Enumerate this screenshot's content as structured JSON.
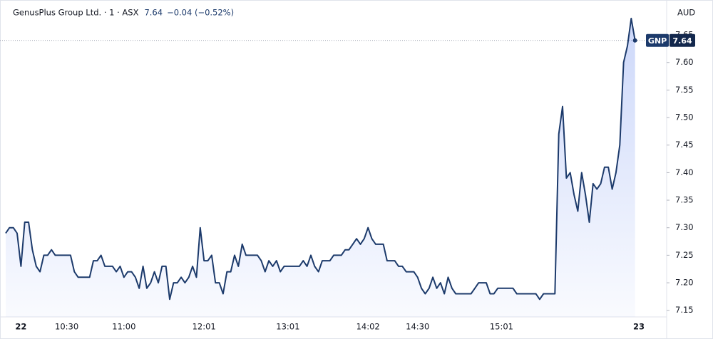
{
  "chart_data": {
    "type": "line",
    "title": "GenusPlus Group Ltd. · 1 · ASX",
    "last_price": 7.64,
    "change": "−0.04 (−0.52%)",
    "symbol": "GNP",
    "currency": "AUD",
    "color": "#1c3a6b",
    "categories": [
      null,
      null,
      null,
      null,
      "22",
      null,
      null,
      null,
      null,
      null,
      null,
      null,
      null,
      null,
      null,
      null,
      "10:30",
      null,
      null,
      null,
      null,
      null,
      null,
      null,
      null,
      null,
      null,
      null,
      null,
      null,
      null,
      "11:00",
      null,
      null,
      null,
      null,
      null,
      null,
      null,
      null,
      null,
      null,
      null,
      null,
      null,
      null,
      null,
      null,
      null,
      null,
      null,
      null,
      "12:01",
      null,
      null,
      null,
      null,
      null,
      null,
      null,
      null,
      null,
      null,
      null,
      null,
      null,
      null,
      null,
      null,
      null,
      null,
      null,
      null,
      null,
      "13:01",
      null,
      null,
      null,
      null,
      null,
      null,
      null,
      null,
      null,
      null,
      null,
      null,
      null,
      null,
      null,
      null,
      null,
      null,
      null,
      null,
      "14:02",
      null,
      null,
      null,
      null,
      null,
      null,
      null,
      null,
      null,
      null,
      null,
      null,
      "14:30",
      null,
      null,
      null,
      null,
      null,
      null,
      null,
      null,
      null,
      null,
      null,
      null,
      null,
      null,
      null,
      null,
      null,
      null,
      null,
      null,
      null,
      "15:01",
      null,
      null,
      null,
      null,
      null,
      null,
      null,
      null,
      null,
      null,
      null,
      null,
      null,
      null,
      null,
      null,
      null,
      null,
      null,
      null,
      null,
      null,
      null,
      null,
      null,
      null,
      null,
      null,
      null,
      null,
      null,
      null,
      null,
      null,
      null,
      "23"
    ],
    "values": [
      7.29,
      7.3,
      7.3,
      7.29,
      7.23,
      7.31,
      7.31,
      7.26,
      7.23,
      7.22,
      7.25,
      7.25,
      7.26,
      7.25,
      7.25,
      7.25,
      7.25,
      7.25,
      7.22,
      7.21,
      7.21,
      7.21,
      7.21,
      7.24,
      7.24,
      7.25,
      7.23,
      7.23,
      7.23,
      7.22,
      7.23,
      7.21,
      7.22,
      7.22,
      7.21,
      7.19,
      7.23,
      7.19,
      7.2,
      7.22,
      7.2,
      7.23,
      7.23,
      7.17,
      7.2,
      7.2,
      7.21,
      7.2,
      7.21,
      7.23,
      7.21,
      7.3,
      7.24,
      7.24,
      7.25,
      7.2,
      7.2,
      7.18,
      7.22,
      7.22,
      7.25,
      7.23,
      7.27,
      7.25,
      7.25,
      7.25,
      7.25,
      7.24,
      7.22,
      7.24,
      7.23,
      7.24,
      7.22,
      7.23,
      7.23,
      7.23,
      7.23,
      7.23,
      7.24,
      7.23,
      7.25,
      7.23,
      7.22,
      7.24,
      7.24,
      7.24,
      7.25,
      7.25,
      7.25,
      7.26,
      7.26,
      7.27,
      7.28,
      7.27,
      7.28,
      7.3,
      7.28,
      7.27,
      7.27,
      7.27,
      7.24,
      7.24,
      7.24,
      7.23,
      7.23,
      7.22,
      7.22,
      7.22,
      7.21,
      7.19,
      7.18,
      7.19,
      7.21,
      7.19,
      7.2,
      7.18,
      7.21,
      7.19,
      7.18,
      7.18,
      7.18,
      7.18,
      7.18,
      7.19,
      7.2,
      7.2,
      7.2,
      7.18,
      7.18,
      7.19,
      7.19,
      7.19,
      7.19,
      7.19,
      7.18,
      7.18,
      7.18,
      7.18,
      7.18,
      7.18,
      7.17,
      7.18,
      7.18,
      7.18,
      7.18,
      7.47,
      7.52,
      7.39,
      7.4,
      7.36,
      7.33,
      7.4,
      7.36,
      7.31,
      7.38,
      7.37,
      7.38,
      7.41,
      7.41,
      7.37,
      7.4,
      7.45,
      7.6,
      7.63,
      7.68,
      7.64,
      null
    ],
    "ylim": [
      7.138,
      7.707
    ],
    "yticks": [
      7.15,
      {
        "value": 7.2,
        "label": "7.20"
      },
      7.25,
      {
        "value": 7.3,
        "label": "7.30"
      },
      7.35,
      {
        "value": 7.4,
        "label": "7.40"
      },
      7.45,
      {
        "value": 7.5,
        "label": "7.50"
      },
      7.55,
      {
        "value": 7.6,
        "label": "7.60"
      },
      7.65
    ],
    "grid": false
  }
}
